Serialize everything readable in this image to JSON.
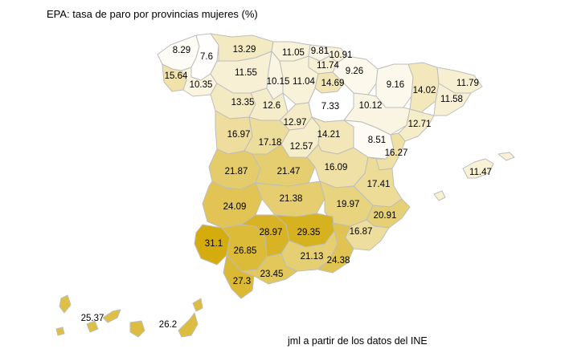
{
  "title": "EPA: tasa de paro por provincias mujeres (%)",
  "credit": "jml a partir de los datos del INE",
  "colors": {
    "min": "#ffffff",
    "max": "#d4ac0d",
    "border": "#bdbdbd"
  },
  "scale": {
    "min": 7.33,
    "max": 31.1
  },
  "regions": [
    {
      "id": "a-coruna",
      "value": "8.29"
    },
    {
      "id": "lugo",
      "value": "7.6"
    },
    {
      "id": "pontevedra",
      "value": "15.64"
    },
    {
      "id": "ourense",
      "value": "10.35"
    },
    {
      "id": "asturias",
      "value": "13.29"
    },
    {
      "id": "cantabria",
      "value": "11.05"
    },
    {
      "id": "bizkaia",
      "value": "9.81"
    },
    {
      "id": "gipuzkoa",
      "value": "10.91"
    },
    {
      "id": "araba",
      "value": "11.74"
    },
    {
      "id": "navarra",
      "value": "9.26"
    },
    {
      "id": "leon",
      "value": "11.55"
    },
    {
      "id": "palencia",
      "value": "10.15"
    },
    {
      "id": "burgos",
      "value": "11.04"
    },
    {
      "id": "la-rioja",
      "value": "14.69"
    },
    {
      "id": "huesca",
      "value": "9.16"
    },
    {
      "id": "lleida",
      "value": "14.02"
    },
    {
      "id": "girona",
      "value": "11.79"
    },
    {
      "id": "barcelona",
      "value": "11.58"
    },
    {
      "id": "zamora",
      "value": "13.35"
    },
    {
      "id": "valladolid",
      "value": "12.6"
    },
    {
      "id": "soria",
      "value": "7.33"
    },
    {
      "id": "zaragoza",
      "value": "10.12"
    },
    {
      "id": "tarragona",
      "value": "12.71"
    },
    {
      "id": "salamanca",
      "value": "16.97"
    },
    {
      "id": "segovia",
      "value": "12.97"
    },
    {
      "id": "avila",
      "value": "17.18"
    },
    {
      "id": "madrid",
      "value": "12.57"
    },
    {
      "id": "guadalajara",
      "value": "14.21"
    },
    {
      "id": "teruel",
      "value": "8.51"
    },
    {
      "id": "castellon",
      "value": "16.27"
    },
    {
      "id": "baleares",
      "value": "11.47"
    },
    {
      "id": "caceres",
      "value": "21.87"
    },
    {
      "id": "toledo",
      "value": "21.47"
    },
    {
      "id": "cuenca",
      "value": "16.09"
    },
    {
      "id": "valencia",
      "value": "17.41"
    },
    {
      "id": "badajoz",
      "value": "24.09"
    },
    {
      "id": "ciudad-real",
      "value": "21.38"
    },
    {
      "id": "albacete",
      "value": "19.97"
    },
    {
      "id": "alicante",
      "value": "20.91"
    },
    {
      "id": "murcia",
      "value": "16.87"
    },
    {
      "id": "huelva",
      "value": "31.1"
    },
    {
      "id": "sevilla",
      "value": "26.85"
    },
    {
      "id": "cordoba",
      "value": "28.97"
    },
    {
      "id": "jaen",
      "value": "29.35"
    },
    {
      "id": "granada",
      "value": "21.13"
    },
    {
      "id": "almeria",
      "value": "24.38"
    },
    {
      "id": "cadiz",
      "value": "27.3"
    },
    {
      "id": "malaga",
      "value": "23.45"
    },
    {
      "id": "santa-cruz-de-tenerife",
      "value": "25.37"
    },
    {
      "id": "las-palmas",
      "value": "26.2"
    }
  ]
}
